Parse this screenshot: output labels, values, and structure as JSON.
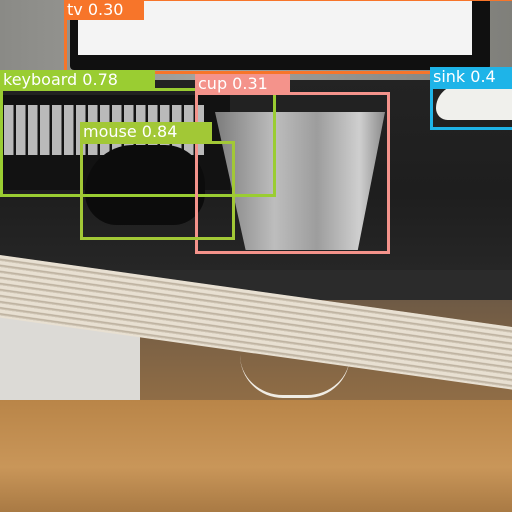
{
  "detections": [
    {
      "label": "tv 0.30",
      "color": "#F7752A"
    },
    {
      "label": "keyboard 0.78",
      "color": "#9ACD32"
    },
    {
      "label": "cup 0.31",
      "color": "#F4938B"
    },
    {
      "label": "sink 0.4",
      "color": "#1EB4E8"
    },
    {
      "label": "mouse 0.84",
      "color": "#A2C836"
    }
  ]
}
